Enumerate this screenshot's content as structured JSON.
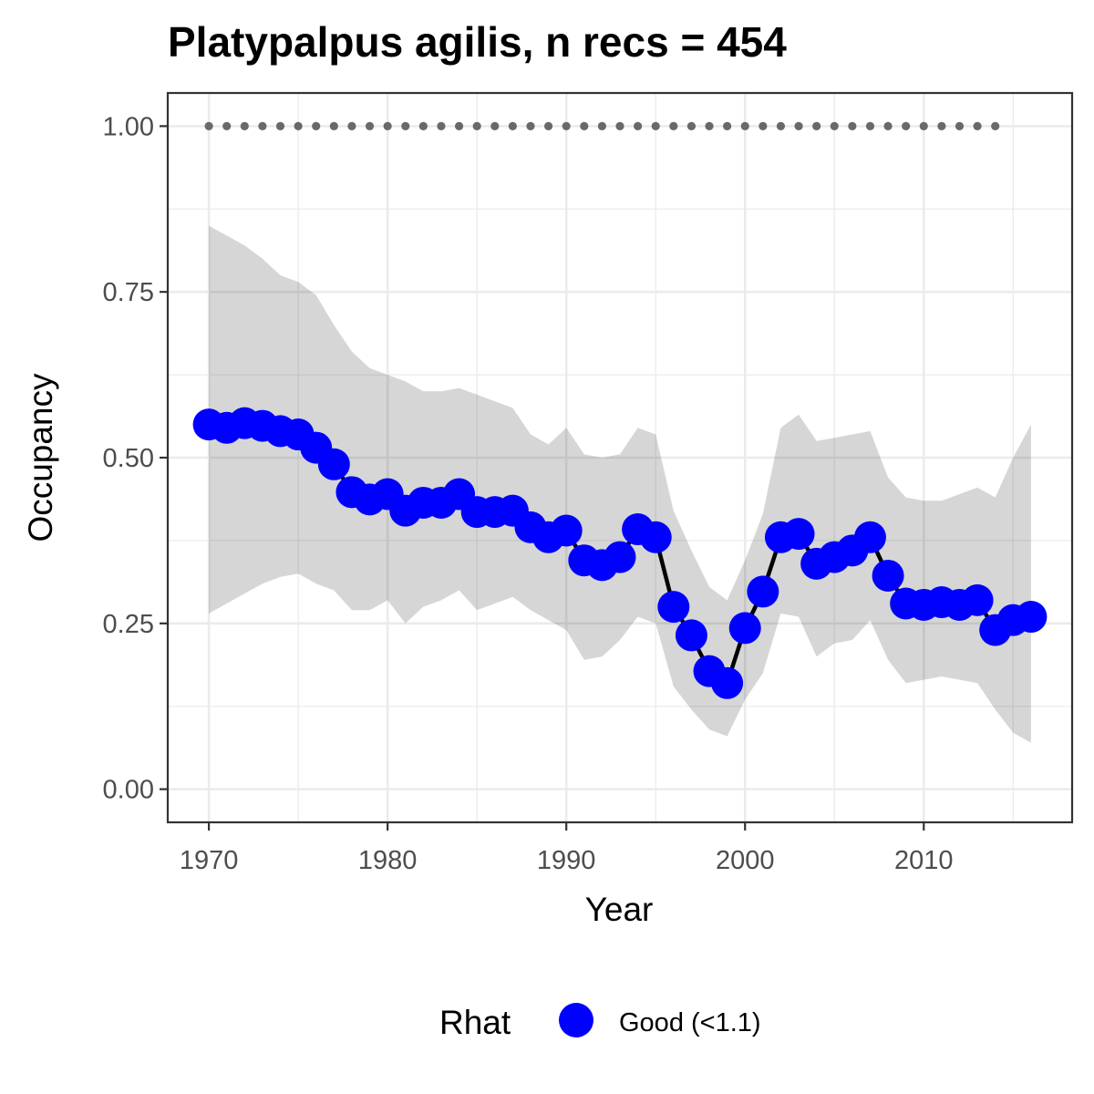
{
  "chart_data": {
    "type": "line",
    "title": "Platypalpus agilis, n recs = 454",
    "xlabel": "Year",
    "ylabel": "Occupancy",
    "xlim": [
      1967.7,
      2018.3
    ],
    "ylim": [
      -0.05,
      1.05
    ],
    "x_ticks": [
      1970,
      1980,
      1990,
      2000,
      2010
    ],
    "y_ticks": [
      0.0,
      0.25,
      0.5,
      0.75,
      1.0
    ],
    "x_tick_labels": [
      "1970",
      "1980",
      "1990",
      "2000",
      "2010"
    ],
    "y_tick_labels": [
      "0.00",
      "0.25",
      "0.50",
      "0.75",
      "1.00"
    ],
    "grid": true,
    "legend_position": "bottom",
    "legend": {
      "title": "Rhat",
      "entries": [
        {
          "label": "Good (<1.1)",
          "color": "#0000ff"
        }
      ]
    },
    "colors": {
      "ribbon": "#d9d9d9",
      "line": "#000000",
      "points": "#0000ff",
      "reference_dots": "#696969",
      "panel_border": "#333333",
      "grid": "#ebebeb"
    },
    "x": [
      1970,
      1971,
      1972,
      1973,
      1974,
      1975,
      1976,
      1977,
      1978,
      1979,
      1980,
      1981,
      1982,
      1983,
      1984,
      1985,
      1986,
      1987,
      1988,
      1989,
      1990,
      1991,
      1992,
      1993,
      1994,
      1995,
      1996,
      1997,
      1998,
      1999,
      2000,
      2001,
      2002,
      2003,
      2004,
      2005,
      2006,
      2007,
      2008,
      2009,
      2010,
      2011,
      2012,
      2013,
      2014,
      2015,
      2016
    ],
    "series": [
      {
        "values": [
          0.55,
          0.545,
          0.552,
          0.548,
          0.54,
          0.535,
          0.515,
          0.49,
          0.448,
          0.437,
          0.445,
          0.42,
          0.432,
          0.432,
          0.445,
          0.418,
          0.418,
          0.42,
          0.395,
          0.38,
          0.39,
          0.345,
          0.338,
          0.35,
          0.392,
          0.38,
          0.275,
          0.232,
          0.178,
          0.16,
          0.243,
          0.298,
          0.38,
          0.385,
          0.34,
          0.35,
          0.36,
          0.38,
          0.322,
          0.28,
          0.278,
          0.282,
          0.278,
          0.285,
          0.24,
          0.255,
          0.26
        ],
        "lower": [
          0.265,
          0.28,
          0.295,
          0.31,
          0.32,
          0.325,
          0.31,
          0.3,
          0.27,
          0.27,
          0.285,
          0.25,
          0.275,
          0.285,
          0.3,
          0.27,
          0.28,
          0.29,
          0.27,
          0.255,
          0.24,
          0.195,
          0.2,
          0.225,
          0.26,
          0.25,
          0.155,
          0.12,
          0.09,
          0.08,
          0.135,
          0.175,
          0.265,
          0.26,
          0.2,
          0.22,
          0.225,
          0.255,
          0.195,
          0.16,
          0.165,
          0.17,
          0.165,
          0.16,
          0.12,
          0.085,
          0.07
        ],
        "upper": [
          0.85,
          0.835,
          0.82,
          0.8,
          0.775,
          0.765,
          0.745,
          0.7,
          0.66,
          0.635,
          0.625,
          0.615,
          0.6,
          0.6,
          0.605,
          0.595,
          0.585,
          0.575,
          0.535,
          0.52,
          0.545,
          0.505,
          0.5,
          0.505,
          0.545,
          0.535,
          0.42,
          0.36,
          0.305,
          0.285,
          0.345,
          0.415,
          0.545,
          0.565,
          0.525,
          0.53,
          0.535,
          0.54,
          0.47,
          0.44,
          0.435,
          0.435,
          0.445,
          0.455,
          0.44,
          0.5,
          0.55
        ]
      }
    ],
    "reference_line": {
      "y": 1.0,
      "x": [
        1970,
        1971,
        1972,
        1973,
        1974,
        1975,
        1976,
        1977,
        1978,
        1979,
        1980,
        1981,
        1982,
        1983,
        1984,
        1985,
        1986,
        1987,
        1988,
        1989,
        1990,
        1991,
        1992,
        1993,
        1994,
        1995,
        1996,
        1997,
        1998,
        1999,
        2000,
        2001,
        2002,
        2003,
        2004,
        2005,
        2006,
        2007,
        2008,
        2009,
        2010,
        2011,
        2012,
        2013,
        2014
      ]
    }
  }
}
